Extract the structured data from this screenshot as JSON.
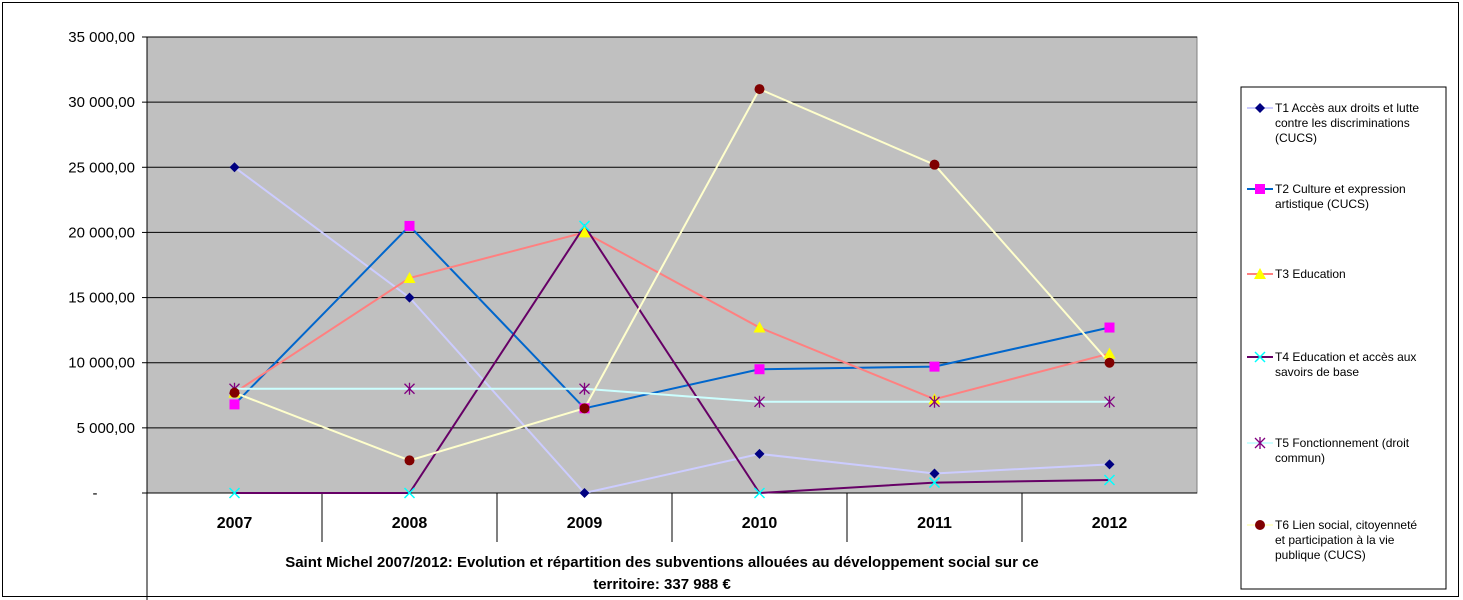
{
  "chart_data": {
    "type": "line",
    "categories": [
      "2007",
      "2008",
      "2009",
      "2010",
      "2011",
      "2012"
    ],
    "ylim": [
      0,
      35000
    ],
    "yticks": [
      {
        "value": 0,
        "label": "-"
      },
      {
        "value": 5000,
        "label": "5 000,00"
      },
      {
        "value": 10000,
        "label": "10 000,00"
      },
      {
        "value": 15000,
        "label": "15 000,00"
      },
      {
        "value": 20000,
        "label": "20 000,00"
      },
      {
        "value": 25000,
        "label": "25 000,00"
      },
      {
        "value": 30000,
        "label": "30 000,00"
      },
      {
        "value": 35000,
        "label": "35 000,00"
      }
    ],
    "title_lines": [
      "Saint Michel 2007/2012: Evolution et répartition des subventions allouées au développement social sur ce",
      "territoire: 337 988 €"
    ],
    "grid": "horizontal",
    "legend_position": "right",
    "plot_background": "#c0c0c0",
    "series": [
      {
        "name": "T1 Accès aux droits et lutte contre les discriminations (CUCS)",
        "legend_lines": [
          "T1 Accès aux droits et lutte",
          "contre les discriminations",
          "(CUCS)"
        ],
        "values": [
          25000,
          15000,
          0,
          3000,
          1500,
          2200
        ],
        "line_color": "#ccccff",
        "marker_color": "#000080",
        "marker": "diamond"
      },
      {
        "name": "T2 Culture et expression artistique (CUCS)",
        "legend_lines": [
          "T2 Culture et expression",
          "artistique (CUCS)"
        ],
        "values": [
          6800,
          20500,
          6500,
          9500,
          9700,
          12700
        ],
        "line_color": "#0066cc",
        "marker_color": "#ff00ff",
        "marker": "square"
      },
      {
        "name": "T3 Education",
        "legend_lines": [
          "T3 Education"
        ],
        "values": [
          7700,
          16500,
          20000,
          12700,
          7200,
          10700
        ],
        "line_color": "#ff8080",
        "marker_color": "#ffff00",
        "marker": "triangle"
      },
      {
        "name": "T4 Education et accès aux savoirs de base",
        "legend_lines": [
          "T4 Education et accès aux",
          "savoirs de base"
        ],
        "values": [
          0,
          0,
          20500,
          0,
          800,
          1000
        ],
        "line_color": "#660066",
        "marker_color": "#00ffff",
        "marker": "x"
      },
      {
        "name": "T5 Fonctionnement (droit commun)",
        "legend_lines": [
          "T5 Fonctionnement (droit",
          "commun)"
        ],
        "values": [
          8000,
          8000,
          8000,
          7000,
          7000,
          7000
        ],
        "line_color": "#ccffff",
        "marker_color": "#800080",
        "marker": "star"
      },
      {
        "name": "T6 Lien social, citoyenneté et participation à la vie publique (CUCS)",
        "legend_lines": [
          "T6 Lien social, citoyenneté",
          "et participation à la vie",
          "publique (CUCS)"
        ],
        "values": [
          7700,
          2500,
          6500,
          31000,
          25200,
          10000
        ],
        "line_color": "#ffffcc",
        "marker_color": "#800000",
        "marker": "circle"
      }
    ]
  }
}
